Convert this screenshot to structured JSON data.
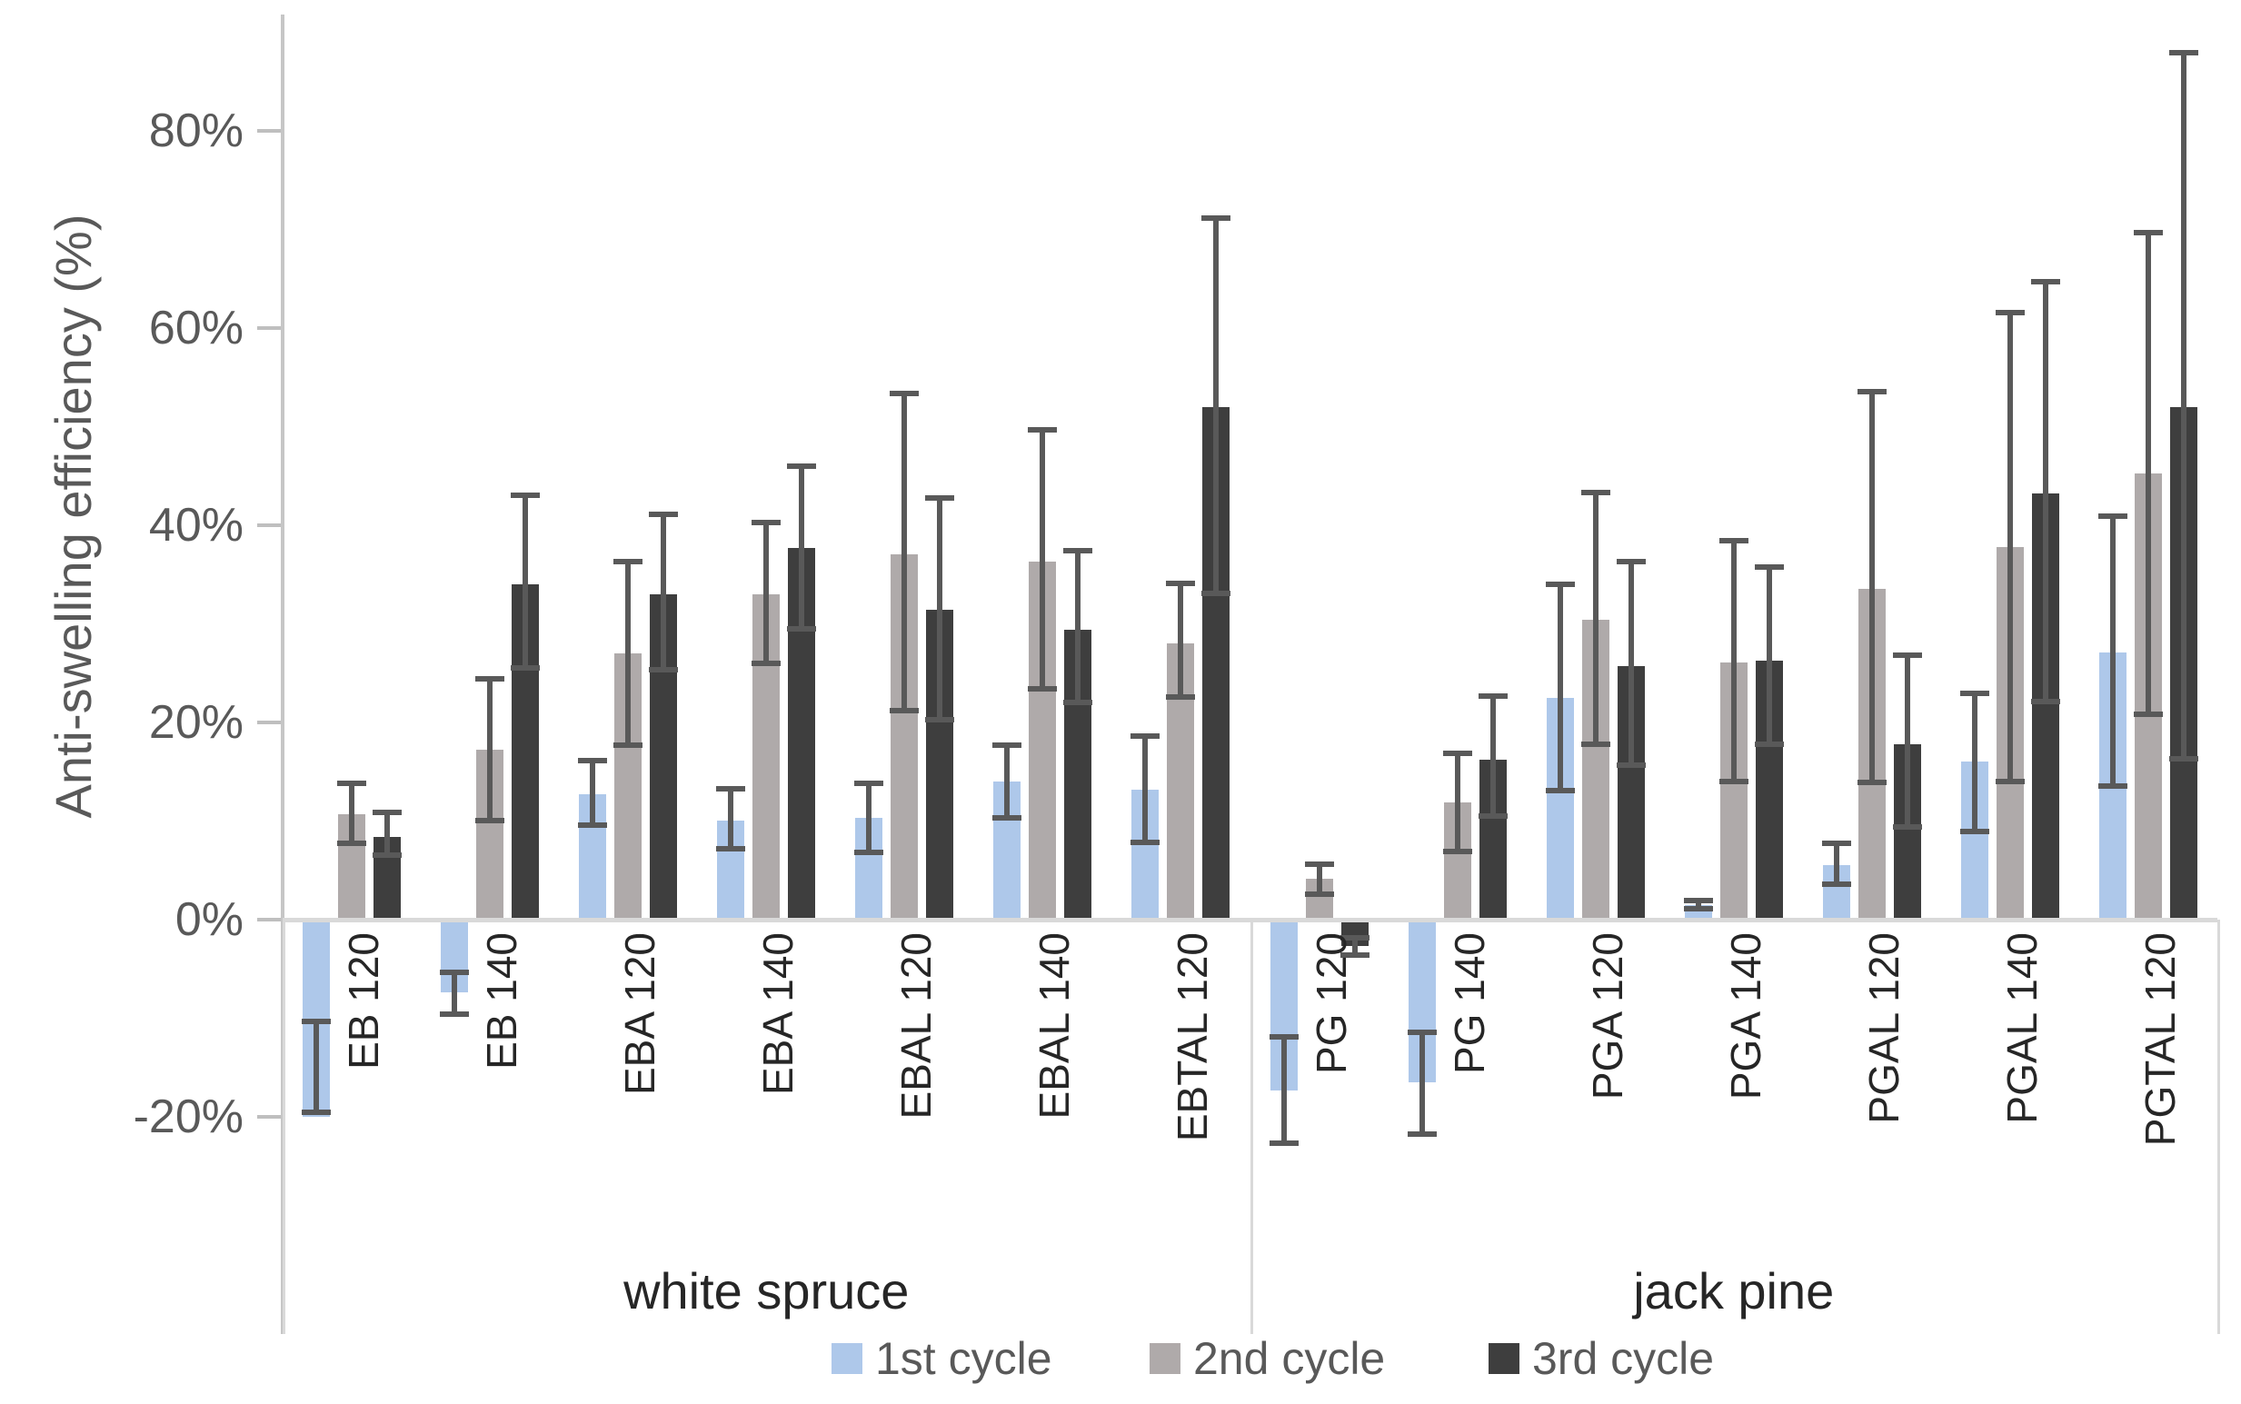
{
  "chart_data": {
    "type": "bar",
    "title": "",
    "ylabel": "Anti-swelling efficiency (%)",
    "xlabel": "",
    "ylim": [
      -20,
      80
    ],
    "grid": false,
    "legend_position": "bottom",
    "y_ticks": [
      {
        "label": "80%",
        "value": 80
      },
      {
        "label": "60%",
        "value": 60
      },
      {
        "label": "40%",
        "value": 40
      },
      {
        "label": "20%",
        "value": 20
      },
      {
        "label": "0%",
        "value": 0
      },
      {
        "label": "-20%",
        "value": -20
      }
    ],
    "sections": [
      {
        "label": "white spruce",
        "categories": [
          "EB 120",
          "EB 140",
          "EBA 120",
          "EBA 140",
          "EBAL 120",
          "EBAL 140",
          "EBTAL 120"
        ]
      },
      {
        "label": "jack pine",
        "categories": [
          "PG 120",
          "PG 140",
          "PGA 120",
          "PGA 140",
          "PGAL 120",
          "PGAL 140",
          "PGTAL 120"
        ]
      }
    ],
    "series": [
      {
        "name": "1st cycle",
        "color": "#AEC8EA",
        "values": [
          -20.0,
          -7.4,
          12.7,
          10.0,
          10.3,
          14.0,
          13.2,
          -17.3,
          -16.5,
          22.5,
          1.5,
          5.5,
          16.0,
          27.1
        ],
        "err_lo": [
          -19.5,
          -9.6,
          9.6,
          7.2,
          6.8,
          10.3,
          7.8,
          -22.7,
          -21.7,
          13.1,
          1.1,
          3.6,
          8.9,
          13.5
        ],
        "err_hi": [
          -10.3,
          -5.3,
          16.1,
          13.3,
          13.8,
          17.7,
          18.6,
          -11.9,
          -11.4,
          34.0,
          1.9,
          7.7,
          22.9,
          40.9
        ]
      },
      {
        "name": "2nd cycle",
        "color": "#AFAAAA",
        "values": [
          10.7,
          17.2,
          27.0,
          33.0,
          37.0,
          36.3,
          28.0,
          4.1,
          11.9,
          30.4,
          26.1,
          33.5,
          37.8,
          45.2
        ],
        "err_lo": [
          7.7,
          10.0,
          17.7,
          26.0,
          21.2,
          23.4,
          22.6,
          2.6,
          6.9,
          17.8,
          14.0,
          13.9,
          14.0,
          20.8
        ],
        "err_hi": [
          13.8,
          24.4,
          36.3,
          40.3,
          53.3,
          49.7,
          34.1,
          5.6,
          16.9,
          43.3,
          38.4,
          53.5,
          61.5,
          69.6
        ]
      },
      {
        "name": "3rd cycle",
        "color": "#3E3E3E",
        "values": [
          8.4,
          34.0,
          33.0,
          37.7,
          31.4,
          29.4,
          52.0,
          -2.7,
          16.2,
          25.7,
          26.3,
          17.8,
          43.2,
          52.0
        ],
        "err_lo": [
          6.5,
          25.5,
          25.3,
          29.5,
          20.3,
          22.0,
          33.1,
          -3.6,
          10.5,
          15.7,
          17.8,
          9.4,
          22.1,
          16.3
        ],
        "err_hi": [
          10.9,
          43.0,
          41.1,
          46.0,
          42.7,
          37.4,
          71.1,
          -1.8,
          22.7,
          36.3,
          35.7,
          26.8,
          64.7,
          87.9
        ]
      }
    ]
  }
}
